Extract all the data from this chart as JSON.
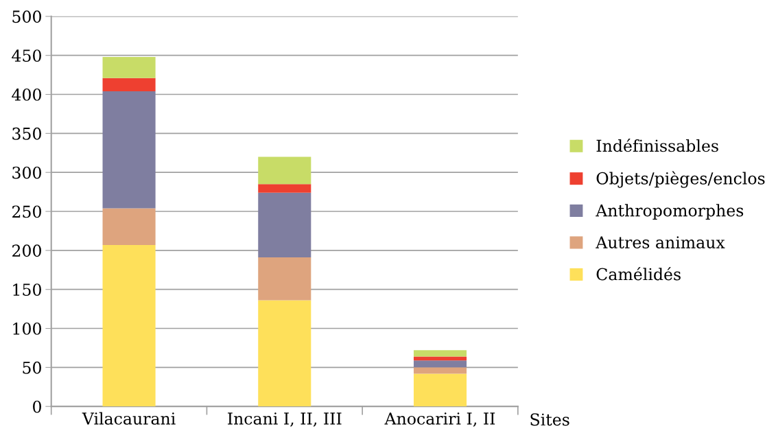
{
  "chart_data": {
    "type": "bar",
    "stacked": true,
    "xlabel": "Sites",
    "categories": [
      "Vilacaurani",
      "Incani I, II, III",
      "Anocariri I, II"
    ],
    "series": [
      {
        "name": "Camélidés",
        "color": "#fee05a",
        "values": [
          207,
          136,
          42
        ]
      },
      {
        "name": "Autres animaux",
        "color": "#dea47e",
        "values": [
          47,
          55,
          8
        ]
      },
      {
        "name": "Anthropomorphes",
        "color": "#7f7ea0",
        "values": [
          150,
          83,
          9
        ]
      },
      {
        "name": "Objets/pièges/enclos",
        "color": "#ee4030",
        "values": [
          17,
          11,
          5
        ]
      },
      {
        "name": "Indéfinissables",
        "color": "#c8dc67",
        "values": [
          27,
          35,
          8
        ]
      }
    ],
    "ylim": [
      0,
      500
    ],
    "yticks": [
      0,
      50,
      100,
      150,
      200,
      250,
      300,
      350,
      400,
      450,
      500
    ],
    "grid": "y",
    "legend": "right"
  }
}
